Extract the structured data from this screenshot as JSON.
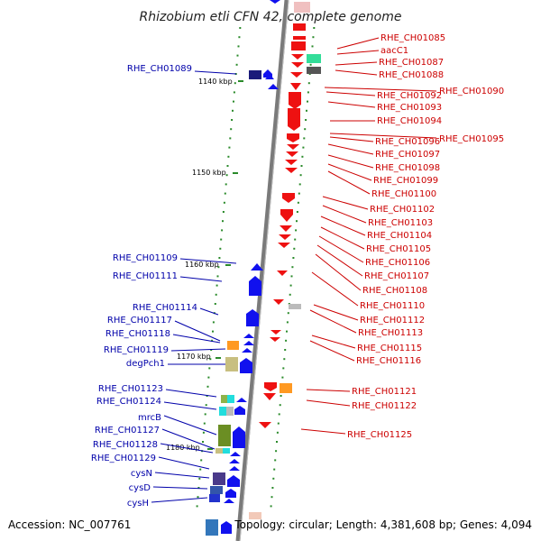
{
  "title": "Rhizobium etli CFN 42, complete genome",
  "footer": {
    "accession": "Accession: NC_007761",
    "topology": "Topology: circular; Length: 4,381,608 bp; Genes: 4,094"
  },
  "colors": {
    "forward": "#0000dd",
    "reverse": "#dd0000",
    "backbone": "#888888",
    "tick": "#2a8a2a"
  },
  "scale": [
    "1140 kbp",
    "1150 kbp",
    "1160 kbp",
    "1170 kbp",
    "1180 kbp"
  ],
  "right_labels": [
    "RHE_CH01085",
    "aacC1",
    "RHE_CH01087",
    "RHE_CH01088",
    "RHE_CH01090",
    "RHE_CH01092",
    "RHE_CH01093",
    "RHE_CH01094",
    "RHE_CH01095",
    "RHE_CH01096",
    "RHE_CH01097",
    "RHE_CH01098",
    "RHE_CH01099",
    "RHE_CH01100",
    "RHE_CH01102",
    "RHE_CH01103",
    "RHE_CH01104",
    "RHE_CH01105",
    "RHE_CH01106",
    "RHE_CH01107",
    "RHE_CH01108",
    "RHE_CH01110",
    "RHE_CH01112",
    "RHE_CH01113",
    "RHE_CH01115",
    "RHE_CH01116",
    "RHE_CH01121",
    "RHE_CH01122",
    "RHE_CH01125"
  ],
  "left_labels": [
    "RHE_CH01089",
    "RHE_CH01109",
    "RHE_CH01111",
    "RHE_CH01114",
    "RHE_CH01117",
    "RHE_CH01118",
    "RHE_CH01119",
    "degPch1",
    "RHE_CH01123",
    "RHE_CH01124",
    "mrcB",
    "RHE_CH01127",
    "RHE_CH01128",
    "RHE_CH01129",
    "cysN",
    "cysD",
    "cysH"
  ]
}
